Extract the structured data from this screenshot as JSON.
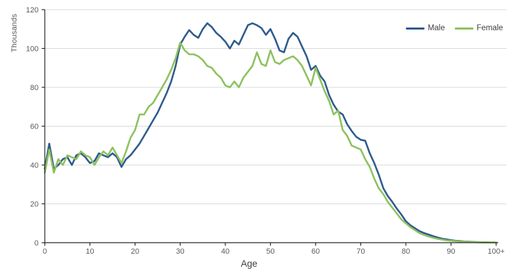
{
  "chart": {
    "y_axis_title": "Thousands",
    "x_axis_title": "Age",
    "axis_color": "#262626",
    "grid_color": "#d9d9d9",
    "legend": [
      {
        "label": "Male",
        "color": "#2e5b8e"
      },
      {
        "label": "Female",
        "color": "#8ec15e"
      }
    ]
  },
  "chart_data": {
    "type": "line",
    "title": "",
    "xlabel": "Age",
    "ylabel": "Thousands",
    "xlim": [
      0,
      100
    ],
    "ylim": [
      0,
      120
    ],
    "yticks": [
      0,
      20,
      40,
      60,
      80,
      100,
      120
    ],
    "xticks": [
      0,
      10,
      20,
      30,
      40,
      50,
      60,
      70,
      80,
      90,
      100
    ],
    "xtick_labels": [
      "0",
      "10",
      "20",
      "30",
      "40",
      "50",
      "60",
      "70",
      "80",
      "90",
      "100+"
    ],
    "grid": "horizontal",
    "legend_position": "top-right",
    "x": [
      0,
      1,
      2,
      3,
      4,
      5,
      6,
      7,
      8,
      9,
      10,
      11,
      12,
      13,
      14,
      15,
      16,
      17,
      18,
      19,
      20,
      21,
      22,
      23,
      24,
      25,
      26,
      27,
      28,
      29,
      30,
      31,
      32,
      33,
      34,
      35,
      36,
      37,
      38,
      39,
      40,
      41,
      42,
      43,
      44,
      45,
      46,
      47,
      48,
      49,
      50,
      51,
      52,
      53,
      54,
      55,
      56,
      57,
      58,
      59,
      60,
      61,
      62,
      63,
      64,
      65,
      66,
      67,
      68,
      69,
      70,
      71,
      72,
      73,
      74,
      75,
      76,
      77,
      78,
      79,
      80,
      81,
      82,
      83,
      84,
      85,
      86,
      87,
      88,
      89,
      90,
      91,
      92,
      93,
      94,
      95,
      96,
      97,
      98,
      99,
      100
    ],
    "series": [
      {
        "name": "Male",
        "color": "#2e5b8e",
        "values": [
          38,
          51,
          38,
          40,
          43,
          44,
          40,
          45,
          46,
          44,
          41,
          42,
          46,
          45,
          44,
          46,
          44,
          39,
          43,
          45,
          48,
          51,
          55,
          59,
          63,
          67,
          72,
          77,
          83,
          91,
          102,
          106,
          109.5,
          107,
          105.5,
          110,
          113,
          111,
          108,
          106,
          103.5,
          100,
          104,
          102,
          107,
          112,
          113,
          112,
          110.5,
          107,
          110,
          105,
          99,
          98,
          105,
          108,
          106,
          101,
          96,
          89,
          91,
          86,
          83,
          76,
          71,
          67.5,
          66,
          61,
          57.5,
          54.5,
          53,
          52.5,
          46,
          41,
          35,
          28,
          24,
          21,
          17.5,
          14.5,
          11,
          9,
          7.5,
          6,
          5,
          4.2,
          3.4,
          2.7,
          2.1,
          1.7,
          1.3,
          1,
          0.8,
          0.6,
          0.5,
          0.4,
          0.3,
          0.2,
          0.15,
          0.1,
          0.1
        ]
      },
      {
        "name": "Female",
        "color": "#8ec15e",
        "values": [
          36,
          48,
          36,
          43,
          40,
          45,
          44,
          43,
          47,
          45,
          44,
          40,
          44,
          47,
          45,
          49,
          45,
          41,
          47,
          54,
          58,
          66,
          66,
          70,
          72,
          76,
          80,
          84,
          89,
          95,
          103,
          99,
          97,
          97,
          96,
          94,
          91,
          90,
          87,
          85,
          81,
          80,
          83,
          80,
          85,
          88,
          91,
          98,
          92,
          91,
          99,
          93,
          92,
          94,
          95,
          96,
          94,
          91,
          86,
          81,
          90,
          84,
          78,
          73,
          66,
          68,
          58,
          55,
          50,
          49,
          48,
          43,
          39,
          33,
          28,
          25,
          21,
          18,
          15,
          12,
          10,
          8,
          6.5,
          5,
          4,
          3.2,
          2.6,
          2,
          1.6,
          1.2,
          1,
          0.8,
          0.6,
          0.5,
          0.4,
          0.3,
          0.25,
          0.2,
          0.15,
          0.1,
          0.1
        ]
      }
    ]
  }
}
